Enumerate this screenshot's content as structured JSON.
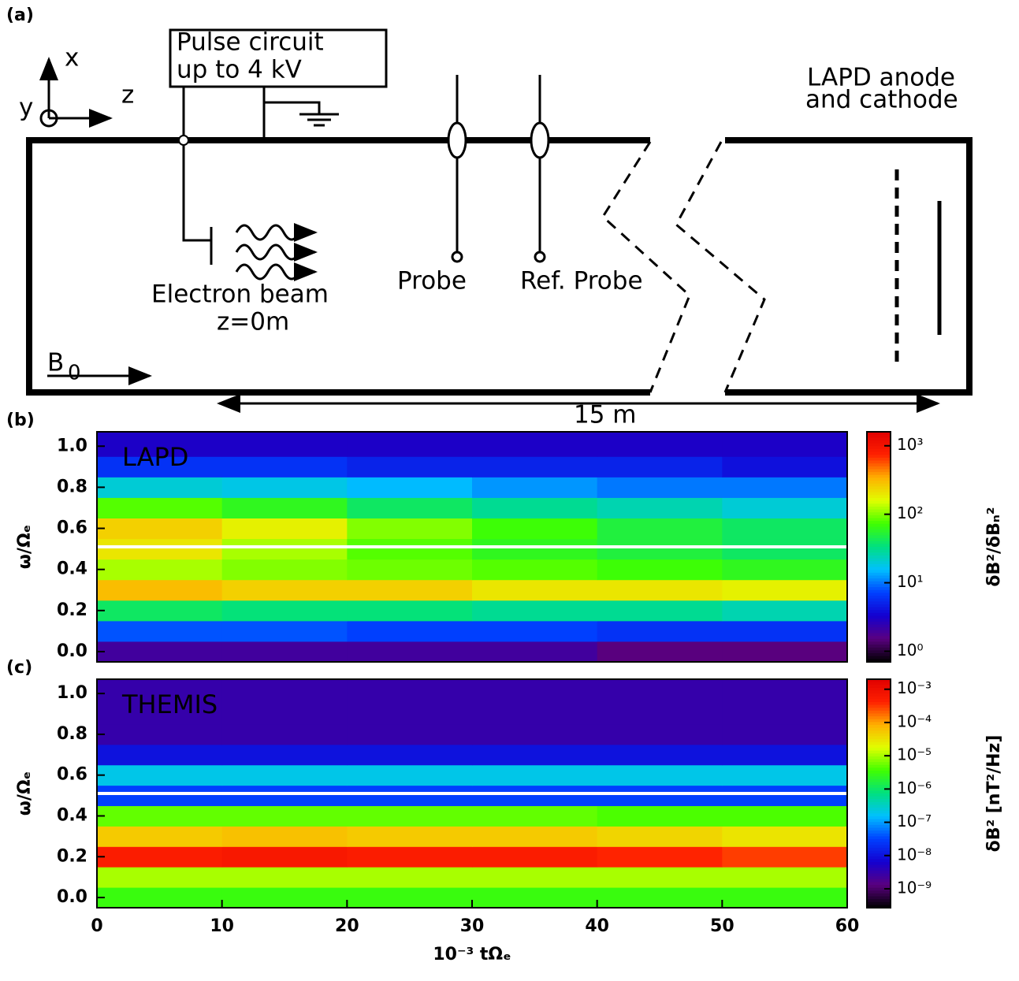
{
  "diagram": {
    "panel_label": "(a)",
    "pulse_circuit": [
      "Pulse circuit",
      "up to 4 kV"
    ],
    "axes": {
      "x": "x",
      "y": "y",
      "z": "z"
    },
    "lapd": [
      "LAPD anode",
      "and cathode"
    ],
    "beam": [
      "Electron beam",
      "z=0m"
    ],
    "probe": "Probe",
    "ref_probe": "Ref. Probe",
    "field": "B",
    "field_sub": "0",
    "length": "15 m"
  },
  "chart_data": [
    {
      "type": "heatmap",
      "panel_label": "(b)",
      "annotation": "LAPD",
      "ylabel": "ω/Ωₑ",
      "clabel": "δB²/δBₙ²",
      "x": [
        5,
        15,
        25,
        35,
        45,
        55
      ],
      "y": [
        0,
        0.1,
        0.2,
        0.3,
        0.4,
        0.5,
        0.6,
        0.7,
        0.8,
        0.9,
        1.0
      ],
      "z": [
        [
          2,
          2,
          2,
          2,
          1.5,
          1.5
        ],
        [
          8,
          8,
          7,
          7,
          6,
          6
        ],
        [
          40,
          35,
          35,
          30,
          30,
          25
        ],
        [
          300,
          250,
          250,
          200,
          200,
          180
        ],
        [
          120,
          100,
          90,
          80,
          70,
          60
        ],
        [
          200,
          120,
          80,
          60,
          50,
          40
        ],
        [
          250,
          180,
          100,
          70,
          50,
          40
        ],
        [
          80,
          60,
          40,
          30,
          25,
          20
        ],
        [
          20,
          18,
          15,
          12,
          10,
          10
        ],
        [
          6,
          6,
          5,
          5,
          5,
          4
        ],
        [
          3,
          3,
          3,
          3,
          3,
          3
        ]
      ],
      "xlim": [
        0,
        60
      ],
      "ylim": [
        -0.05,
        1.07
      ],
      "yticks": [
        {
          "value": 0,
          "label": "0.0"
        },
        0.2,
        0.4,
        0.6,
        0.8,
        {
          "value": 1,
          "label": "1.0"
        }
      ],
      "hline": 0.51,
      "log_color": true,
      "clim": [
        0.7,
        1600
      ],
      "cticks": [
        {
          "value": 1,
          "label": "10⁰"
        },
        {
          "value": 10,
          "label": "10¹"
        },
        {
          "value": 100,
          "label": "10²"
        },
        {
          "value": 1000,
          "label": "10³"
        }
      ],
      "colormap": [
        "#000000",
        "#5a0080",
        "#1400d0",
        "#0040ff",
        "#00c0ff",
        "#00e080",
        "#40ff00",
        "#e0ff00",
        "#ffb000",
        "#ff2000",
        "#e00000"
      ]
    },
    {
      "type": "heatmap",
      "panel_label": "(c)",
      "annotation": "THEMIS",
      "ylabel": "ω/Ωₑ",
      "clabel": "δB² [nT²/Hz]",
      "xlabel": "10⁻³ tΩₑ",
      "x": [
        5,
        15,
        25,
        35,
        45,
        55
      ],
      "y": [
        0,
        0.1,
        0.2,
        0.3,
        0.4,
        0.5,
        0.6,
        0.7,
        0.8,
        0.9,
        1.0
      ],
      "z": [
        [
          3e-06,
          3e-06,
          3e-06,
          3e-06,
          3e-06,
          3e-06
        ],
        [
          1e-05,
          1e-05,
          1e-05,
          1e-05,
          1e-05,
          1e-05
        ],
        [
          0.0005,
          0.0006,
          0.0005,
          0.0005,
          0.0004,
          0.0003
        ],
        [
          5e-05,
          6e-05,
          5e-05,
          5e-05,
          4e-05,
          3e-05
        ],
        [
          5e-06,
          5e-06,
          5e-06,
          5e-06,
          4e-06,
          4e-06
        ],
        [
          3e-08,
          3e-08,
          3e-08,
          3e-08,
          3e-08,
          3e-08
        ],
        [
          2e-07,
          2e-07,
          2e-07,
          2e-07,
          2e-07,
          2e-07
        ],
        [
          1e-08,
          1e-08,
          1e-08,
          1e-08,
          1e-08,
          1e-08
        ],
        [
          3e-09,
          3e-09,
          3e-09,
          3e-09,
          3e-09,
          3e-09
        ],
        [
          3e-09,
          3e-09,
          3e-09,
          3e-09,
          3e-09,
          3e-09
        ],
        [
          3e-09,
          3e-09,
          3e-09,
          3e-09,
          3e-09,
          3e-09
        ]
      ],
      "xlim": [
        0,
        60
      ],
      "ylim": [
        -0.05,
        1.07
      ],
      "xticks": [
        0,
        10,
        20,
        30,
        40,
        50,
        60
      ],
      "yticks": [
        {
          "value": 0,
          "label": "0.0"
        },
        0.2,
        0.4,
        0.6,
        0.8,
        {
          "value": 1,
          "label": "1.0"
        }
      ],
      "hline": 0.51,
      "log_color": true,
      "clim": [
        2.7e-10,
        0.002
      ],
      "cticks": [
        {
          "value": 1e-09,
          "label": "10⁻⁹"
        },
        {
          "value": 1e-08,
          "label": "10⁻⁸"
        },
        {
          "value": 1e-07,
          "label": "10⁻⁷"
        },
        {
          "value": 1e-06,
          "label": "10⁻⁶"
        },
        {
          "value": 1e-05,
          "label": "10⁻⁵"
        },
        {
          "value": 0.0001,
          "label": "10⁻⁴"
        },
        {
          "value": 0.001,
          "label": "10⁻³"
        }
      ],
      "colormap": [
        "#000000",
        "#5a0080",
        "#1400d0",
        "#0040ff",
        "#00c0ff",
        "#00e080",
        "#40ff00",
        "#e0ff00",
        "#ffb000",
        "#ff2000",
        "#e00000"
      ]
    }
  ]
}
